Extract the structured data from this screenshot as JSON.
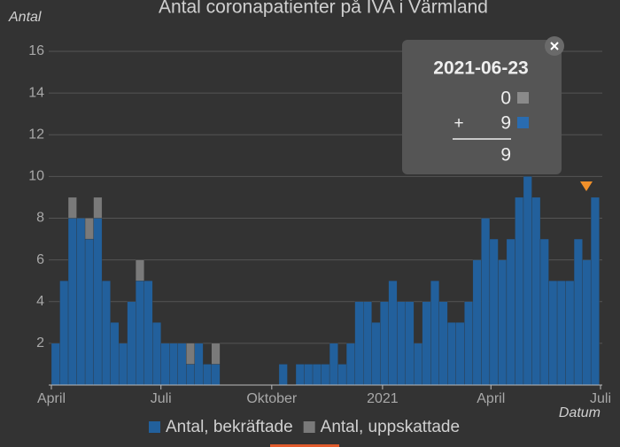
{
  "chart_data": {
    "type": "bar",
    "title": "Antal coronapatienter på IVA i Värmland",
    "y_label": "Antal",
    "x_label": "Datum",
    "x": [
      "2020-04-01",
      "2020-04-08",
      "2020-04-15",
      "2020-04-22",
      "2020-04-29",
      "2020-05-06",
      "2020-05-13",
      "2020-05-20",
      "2020-05-27",
      "2020-06-03",
      "2020-06-10",
      "2020-06-17",
      "2020-06-24",
      "2020-07-01",
      "2020-07-08",
      "2020-07-15",
      "2020-07-22",
      "2020-07-29",
      "2020-08-05",
      "2020-08-12",
      "2020-08-19",
      "2020-08-26",
      "2020-09-02",
      "2020-09-09",
      "2020-09-16",
      "2020-09-23",
      "2020-09-30",
      "2020-10-07",
      "2020-10-14",
      "2020-10-21",
      "2020-10-28",
      "2020-11-04",
      "2020-11-11",
      "2020-11-18",
      "2020-11-25",
      "2020-12-02",
      "2020-12-09",
      "2020-12-16",
      "2020-12-23",
      "2020-12-30",
      "2021-01-06",
      "2021-01-13",
      "2021-01-20",
      "2021-01-27",
      "2021-02-03",
      "2021-02-10",
      "2021-02-17",
      "2021-02-24",
      "2021-03-03",
      "2021-03-10",
      "2021-03-17",
      "2021-03-24",
      "2021-03-31",
      "2021-04-07",
      "2021-04-14",
      "2021-04-21",
      "2021-04-28",
      "2021-05-05",
      "2021-05-12",
      "2021-05-19",
      "2021-05-26",
      "2021-06-02",
      "2021-06-09",
      "2021-06-16",
      "2021-06-23"
    ],
    "series": [
      {
        "name": "Antal, bekräftade",
        "color": "#22609c",
        "values": [
          2,
          5,
          8,
          8,
          7,
          8,
          5,
          3,
          2,
          4,
          5,
          5,
          3,
          2,
          2,
          2,
          1,
          2,
          1,
          1,
          0,
          0,
          0,
          0,
          0,
          0,
          0,
          1,
          0,
          1,
          1,
          1,
          1,
          2,
          1,
          2,
          4,
          4,
          3,
          4,
          5,
          4,
          4,
          2,
          4,
          5,
          4,
          3,
          3,
          4,
          6,
          8,
          7,
          6,
          7,
          9,
          10,
          9,
          7,
          5,
          5,
          5,
          7,
          6,
          9
        ]
      },
      {
        "name": "Antal, uppskattade",
        "color": "#7a7a7a",
        "values": [
          0,
          0,
          1,
          0,
          1,
          1,
          0,
          0,
          0,
          0,
          1,
          0,
          0,
          0,
          0,
          0,
          1,
          0,
          0,
          1,
          0,
          0,
          0,
          0,
          0,
          0,
          0,
          0,
          0,
          0,
          0,
          0,
          0,
          0,
          0,
          0,
          0,
          0,
          0,
          0,
          0,
          0,
          0,
          0,
          0,
          0,
          0,
          0,
          0,
          0,
          0,
          0,
          0,
          0,
          0,
          0,
          0,
          0,
          0,
          0,
          0,
          0,
          0,
          0,
          0
        ]
      }
    ],
    "xlim": [
      "2020-04-01",
      "2021-07-01"
    ],
    "xticks": [
      {
        "value": "2020-04-01",
        "label": "April"
      },
      {
        "value": "2020-07-01",
        "label": "Juli"
      },
      {
        "value": "2020-10-01",
        "label": "Oktober"
      },
      {
        "value": "2021-01-01",
        "label": "2021"
      },
      {
        "value": "2021-04-01",
        "label": "April"
      },
      {
        "value": "2021-07-01",
        "label": "Juli"
      }
    ],
    "ylim": [
      0,
      16
    ],
    "yticks": [
      2,
      4,
      6,
      8,
      10,
      12,
      14,
      16
    ],
    "grid": true,
    "legend": "bottom",
    "tooltip": {
      "operator": "+",
      "total": 9
    }
  }
}
